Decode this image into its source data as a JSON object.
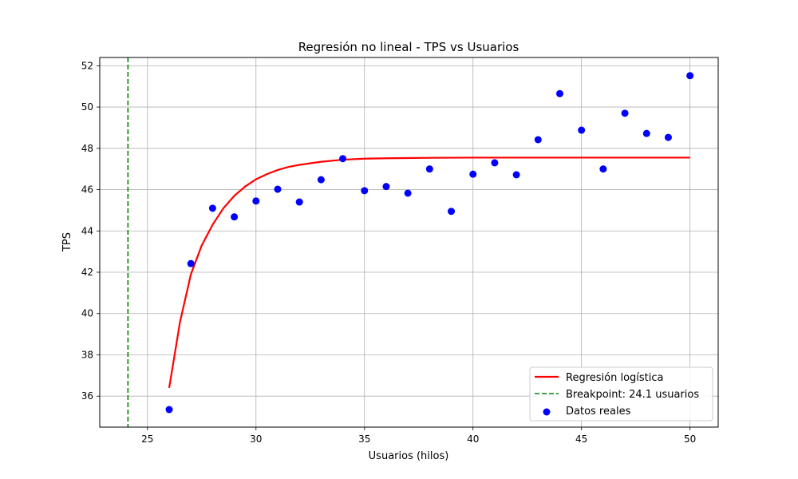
{
  "chart_data": {
    "type": "scatter",
    "title": "Regresión no lineal - TPS vs Usuarios",
    "xlabel": "Usuarios (hilos)",
    "ylabel": "TPS",
    "xlim": [
      22.8,
      51.3
    ],
    "ylim": [
      34.5,
      52.4
    ],
    "xticks": [
      25,
      30,
      35,
      40,
      45,
      50
    ],
    "yticks": [
      36,
      38,
      40,
      42,
      44,
      46,
      48,
      50,
      52
    ],
    "grid": true,
    "legend_position": "lower-right",
    "series": [
      {
        "name": "Datos reales",
        "kind": "scatter",
        "color": "#0000ff",
        "x": [
          26,
          27,
          28,
          29,
          30,
          31,
          32,
          33,
          34,
          35,
          36,
          37,
          38,
          39,
          40,
          41,
          42,
          43,
          44,
          45,
          46,
          47,
          48,
          49,
          50
        ],
        "y": [
          35.35,
          42.42,
          45.1,
          44.68,
          45.45,
          46.02,
          45.4,
          46.48,
          47.5,
          45.95,
          46.15,
          45.83,
          47.0,
          44.95,
          46.75,
          47.3,
          46.72,
          48.42,
          50.65,
          48.88,
          47.0,
          49.7,
          48.72,
          48.53,
          51.52
        ]
      },
      {
        "name": "Regresión logística",
        "kind": "line",
        "color": "#ff0000",
        "x": [
          26,
          26.5,
          27,
          27.5,
          28,
          28.5,
          29,
          29.5,
          30,
          30.5,
          31,
          31.5,
          32,
          33,
          34,
          35,
          36,
          38,
          40,
          45,
          50
        ],
        "y": [
          36.4,
          39.6,
          41.9,
          43.3,
          44.3,
          45.1,
          45.7,
          46.15,
          46.5,
          46.75,
          46.95,
          47.1,
          47.2,
          47.35,
          47.45,
          47.5,
          47.52,
          47.54,
          47.55,
          47.55,
          47.55
        ]
      },
      {
        "name": "Breakpoint: 24.1 usuarios",
        "kind": "vline",
        "color": "#008000",
        "x_value": 24.1
      }
    ]
  }
}
